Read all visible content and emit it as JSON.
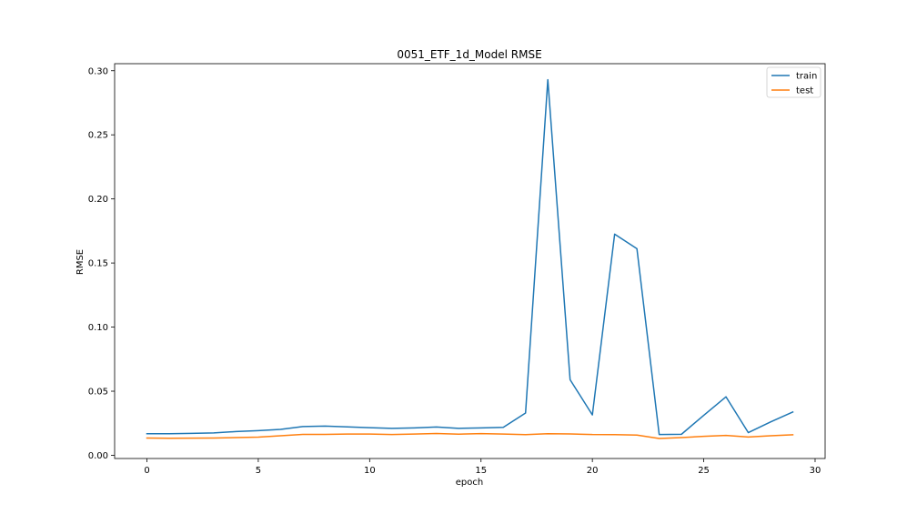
{
  "chart_data": {
    "type": "line",
    "title": "0051_ETF_1d_Model RMSE",
    "xlabel": "epoch",
    "ylabel": "RMSE",
    "xlim": [
      -1.45,
      30.45
    ],
    "ylim": [
      -0.0025,
      0.3055
    ],
    "x": [
      0,
      1,
      2,
      3,
      4,
      5,
      6,
      7,
      8,
      9,
      10,
      11,
      12,
      13,
      14,
      15,
      16,
      17,
      18,
      19,
      20,
      21,
      22,
      23,
      24,
      25,
      26,
      27,
      28,
      29
    ],
    "xticks": [
      0,
      5,
      10,
      15,
      20,
      25,
      30
    ],
    "yticks": [
      0.0,
      0.05,
      0.1,
      0.15,
      0.2,
      0.25,
      0.3
    ],
    "xtick_labels": [
      "0",
      "5",
      "10",
      "15",
      "20",
      "25",
      "30"
    ],
    "ytick_labels": [
      "0.00",
      "0.05",
      "0.10",
      "0.15",
      "0.20",
      "0.25",
      "0.30"
    ],
    "grid": false,
    "legend_position": "top-right",
    "series": [
      {
        "name": "train",
        "color": "#1f77b4",
        "values": [
          0.0168,
          0.0168,
          0.0171,
          0.0175,
          0.0185,
          0.0192,
          0.0202,
          0.0224,
          0.0228,
          0.0222,
          0.0215,
          0.021,
          0.0214,
          0.0221,
          0.021,
          0.0214,
          0.0218,
          0.033,
          0.293,
          0.059,
          0.0315,
          0.1725,
          0.1612,
          0.0162,
          0.0164,
          0.0312,
          0.0456,
          0.0177,
          0.026,
          0.0338
        ]
      },
      {
        "name": "test",
        "color": "#ff7f0e",
        "values": [
          0.0135,
          0.0133,
          0.0134,
          0.0135,
          0.0138,
          0.0142,
          0.0152,
          0.0163,
          0.0163,
          0.0166,
          0.0166,
          0.0162,
          0.0166,
          0.017,
          0.0165,
          0.0169,
          0.0166,
          0.0161,
          0.0168,
          0.0167,
          0.0162,
          0.0161,
          0.0158,
          0.0131,
          0.0138,
          0.0148,
          0.0155,
          0.0143,
          0.0152,
          0.016
        ]
      }
    ]
  }
}
